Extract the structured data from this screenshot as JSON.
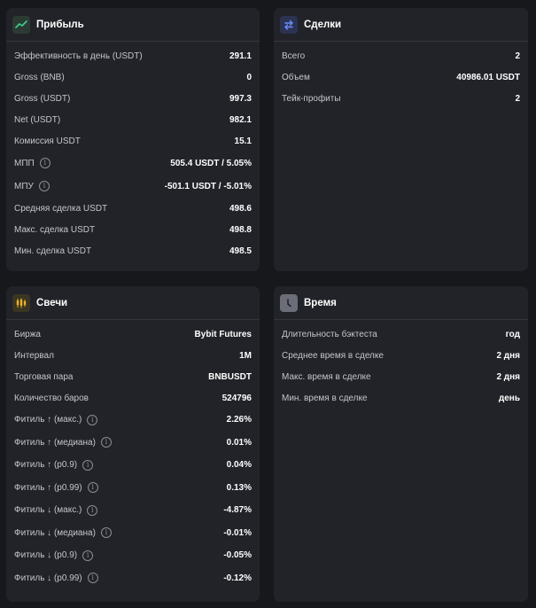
{
  "profit": {
    "title": "Прибыль",
    "rows": [
      {
        "label": "Эффективность в день (USDT)",
        "value": "291.1"
      },
      {
        "label": "Gross (BNB)",
        "value": "0"
      },
      {
        "label": "Gross (USDT)",
        "value": "997.3"
      },
      {
        "label": "Net (USDT)",
        "value": "982.1"
      },
      {
        "label": "Комиссия USDT",
        "value": "15.1"
      },
      {
        "label": "МПП",
        "value": "505.4 USDT / 5.05%",
        "info": true
      },
      {
        "label": "МПУ",
        "value": "-501.1 USDT / -5.01%",
        "info": true
      },
      {
        "label": "Средняя сделка USDT",
        "value": "498.6"
      },
      {
        "label": "Макс. сделка USDT",
        "value": "498.8"
      },
      {
        "label": "Мин. сделка USDT",
        "value": "498.5"
      }
    ]
  },
  "deals": {
    "title": "Сделки",
    "rows": [
      {
        "label": "Всего",
        "value": "2"
      },
      {
        "label": "Объем",
        "value": "40986.01 USDT"
      },
      {
        "label": "Тейк-профиты",
        "value": "2"
      }
    ]
  },
  "candles": {
    "title": "Свечи",
    "rows": [
      {
        "label": "Биржа",
        "value": "Bybit Futures"
      },
      {
        "label": "Интервал",
        "value": "1M"
      },
      {
        "label": "Торговая пара",
        "value": "BNBUSDT"
      },
      {
        "label": "Количество баров",
        "value": "524796"
      },
      {
        "label": "Фитиль ↑ (макс.)",
        "value": "2.26%",
        "info": true
      },
      {
        "label": "Фитиль ↑ (медиана)",
        "value": "0.01%",
        "info": true
      },
      {
        "label": "Фитиль ↑ (p0.9)",
        "value": "0.04%",
        "info": true
      },
      {
        "label": "Фитиль ↑ (p0.99)",
        "value": "0.13%",
        "info": true
      },
      {
        "label": "Фитиль ↓ (макс.)",
        "value": "-4.87%",
        "info": true
      },
      {
        "label": "Фитиль ↓ (медиана)",
        "value": "-0.01%",
        "info": true
      },
      {
        "label": "Фитиль ↓ (p0.9)",
        "value": "-0.05%",
        "info": true
      },
      {
        "label": "Фитиль ↓ (p0.99)",
        "value": "-0.12%",
        "info": true
      }
    ]
  },
  "time": {
    "title": "Время",
    "rows": [
      {
        "label": "Длительность бэктеста",
        "value": "год"
      },
      {
        "label": "Среднее время в сделке",
        "value": "2 дня"
      },
      {
        "label": "Макс. время в сделке",
        "value": "2 дня"
      },
      {
        "label": "Мин. время в сделке",
        "value": "день"
      }
    ]
  },
  "icons": {
    "profit": "trend-up-icon",
    "deals": "swap-arrows-icon",
    "candles": "candlestick-icon",
    "time": "clock-icon",
    "info": "info-icon"
  },
  "colors": {
    "background": "#17181c",
    "card": "#222329",
    "profit_accent": "#3ecf8e",
    "deals_accent": "#6c8cff",
    "candles_accent": "#f0b429"
  }
}
